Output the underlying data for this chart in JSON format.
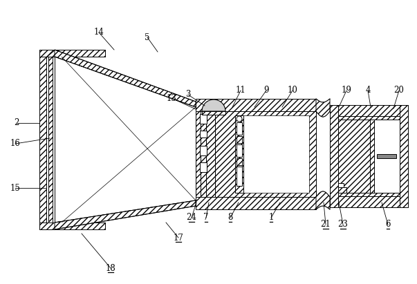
{
  "bg_color": "#ffffff",
  "fig_width": 6.03,
  "fig_height": 4.11,
  "dpi": 100,
  "labels": [
    [
      "14",
      143,
      47,
      165,
      72,
      false
    ],
    [
      "5",
      213,
      54,
      228,
      75,
      false
    ],
    [
      "2",
      24,
      178,
      57,
      178,
      false
    ],
    [
      "16",
      22,
      208,
      72,
      200,
      false
    ],
    [
      "15",
      22,
      272,
      67,
      272,
      false
    ],
    [
      "13",
      248,
      142,
      283,
      158,
      false
    ],
    [
      "3",
      272,
      137,
      296,
      153,
      false
    ],
    [
      "11",
      348,
      131,
      336,
      155,
      false
    ],
    [
      "9",
      385,
      131,
      368,
      155,
      false
    ],
    [
      "10",
      423,
      131,
      408,
      155,
      false
    ],
    [
      "19",
      501,
      131,
      490,
      155,
      false
    ],
    [
      "4",
      532,
      131,
      536,
      155,
      false
    ],
    [
      "20",
      577,
      131,
      569,
      157,
      false
    ],
    [
      "17",
      258,
      344,
      240,
      322,
      true
    ],
    [
      "18",
      160,
      388,
      118,
      338,
      true
    ],
    [
      "24",
      277,
      315,
      284,
      293,
      true
    ],
    [
      "7",
      298,
      315,
      302,
      293,
      true
    ],
    [
      "8",
      333,
      315,
      345,
      293,
      true
    ],
    [
      "1",
      392,
      315,
      405,
      293,
      true
    ],
    [
      "21",
      471,
      325,
      468,
      293,
      true
    ],
    [
      "23",
      496,
      325,
      490,
      293,
      true
    ],
    [
      "6",
      561,
      325,
      552,
      293,
      true
    ]
  ]
}
